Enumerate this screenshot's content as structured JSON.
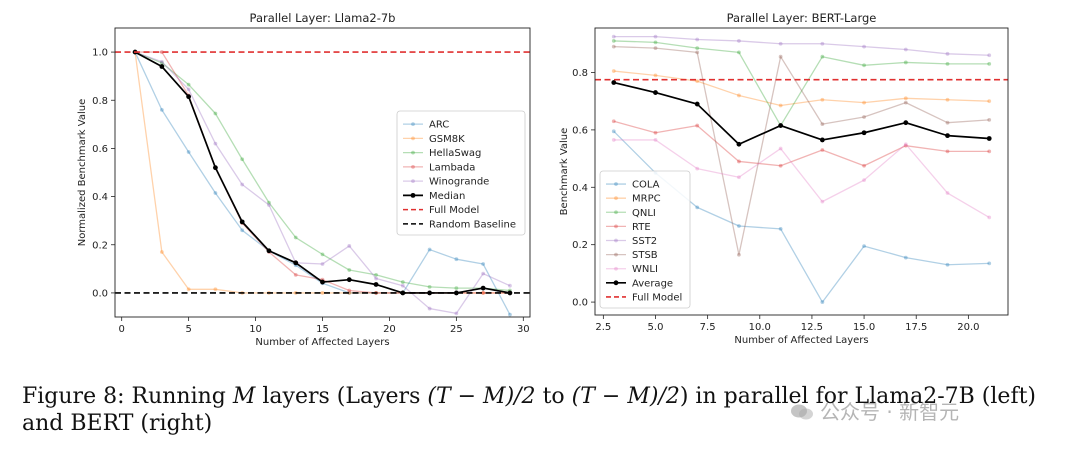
{
  "figure": {
    "caption_label": "Figure 8:",
    "caption_pre": "Running",
    "caption_m1": "M",
    "caption_mid": "layers (Layers",
    "caption_expr1": "(T − M)/2",
    "caption_to": "to",
    "caption_expr2": "(T − M)/2",
    "caption_post": ") in parallel for Llama2-7B (left) and BERT (right)",
    "watermark": "公众号 · 新智元"
  },
  "chart_data": [
    {
      "type": "line",
      "title": "Parallel Layer: Llama2-7b",
      "xlabel": "Number of Affected Layers",
      "ylabel": "Normalized Benchmark Value",
      "xlim": [
        -0.5,
        30.5
      ],
      "ylim": [
        -0.1,
        1.1
      ],
      "xticks": [
        0,
        5,
        10,
        15,
        20,
        25,
        30
      ],
      "xtick_labels": [
        "0",
        "5",
        "10",
        "15",
        "20",
        "25",
        "30"
      ],
      "yticks": [
        0.0,
        0.2,
        0.4,
        0.6,
        0.8,
        1.0
      ],
      "ytick_labels": [
        "0.0",
        "0.2",
        "0.4",
        "0.6",
        "0.8",
        "1.0"
      ],
      "legend_position": "center-right",
      "series": [
        {
          "name": "ARC",
          "color": "#1f77b4",
          "faded": true,
          "x": [
            1,
            3,
            5,
            7,
            9,
            11,
            13,
            15,
            17,
            19,
            21,
            23,
            25,
            27,
            29
          ],
          "y": [
            1.0,
            0.76,
            0.585,
            0.415,
            0.26,
            0.175,
            0.115,
            0.04,
            0.0,
            0.0,
            0.0,
            0.18,
            0.14,
            0.12,
            -0.09
          ]
        },
        {
          "name": "GSM8K",
          "color": "#ff7f0e",
          "faded": true,
          "x": [
            1,
            3,
            5,
            7,
            9,
            11,
            13,
            15,
            17,
            19,
            21,
            23,
            25,
            27,
            29
          ],
          "y": [
            1.0,
            0.17,
            0.015,
            0.015,
            0.0,
            0.0,
            0.0,
            0.0,
            0.0,
            0.0,
            0.0,
            0.0,
            0.0,
            0.0,
            0.0
          ]
        },
        {
          "name": "HellaSwag",
          "color": "#2ca02c",
          "faded": true,
          "x": [
            1,
            3,
            5,
            7,
            9,
            11,
            13,
            15,
            17,
            19,
            21,
            23,
            25,
            27,
            29
          ],
          "y": [
            1.0,
            0.955,
            0.865,
            0.745,
            0.555,
            0.375,
            0.23,
            0.16,
            0.095,
            0.075,
            0.045,
            0.025,
            0.02,
            0.02,
            0.01
          ]
        },
        {
          "name": "Lambada",
          "color": "#d62728",
          "faded": true,
          "x": [
            1,
            3,
            5,
            7,
            9,
            11,
            13,
            15,
            17,
            19,
            21,
            23,
            25,
            27,
            29
          ],
          "y": [
            1.0,
            1.0,
            0.82,
            0.52,
            0.29,
            0.17,
            0.075,
            0.055,
            0.01,
            0.0,
            0.0,
            0.0,
            0.0,
            0.0,
            0.0
          ]
        },
        {
          "name": "Winogrande",
          "color": "#9467bd",
          "faded": true,
          "x": [
            1,
            3,
            5,
            7,
            9,
            11,
            13,
            15,
            17,
            19,
            21,
            23,
            25,
            27,
            29
          ],
          "y": [
            1.0,
            0.96,
            0.845,
            0.62,
            0.45,
            0.365,
            0.125,
            0.12,
            0.195,
            0.06,
            0.03,
            -0.065,
            -0.085,
            0.08,
            0.03
          ]
        },
        {
          "name": "Median",
          "color": "#000000",
          "faded": false,
          "x": [
            1,
            3,
            5,
            7,
            9,
            11,
            13,
            15,
            17,
            19,
            21,
            23,
            25,
            27,
            29
          ],
          "y": [
            1.0,
            0.94,
            0.815,
            0.52,
            0.295,
            0.175,
            0.125,
            0.045,
            0.055,
            0.035,
            0.0,
            0.0,
            0.0,
            0.02,
            0.0
          ]
        },
        {
          "name": "Full Model",
          "color": "#e03030",
          "dashed": true,
          "hline": 1.0
        },
        {
          "name": "Random Baseline",
          "color": "#000000",
          "dashed": true,
          "hline": 0.0
        }
      ]
    },
    {
      "type": "line",
      "title": "Parallel Layer: BERT-Large",
      "xlabel": "Number of Affected Layers",
      "ylabel": "Benchmark Value",
      "xlim": [
        2.1,
        21.9
      ],
      "ylim": [
        -0.045,
        0.955
      ],
      "xticks": [
        2.5,
        5.0,
        7.5,
        10.0,
        12.5,
        15.0,
        17.5,
        20.0
      ],
      "xtick_labels": [
        "2.5",
        "5.0",
        "7.5",
        "10.0",
        "12.5",
        "15.0",
        "17.5",
        "20.0"
      ],
      "yticks": [
        0.0,
        0.2,
        0.4,
        0.6,
        0.8
      ],
      "ytick_labels": [
        "0.0",
        "0.2",
        "0.4",
        "0.6",
        "0.8"
      ],
      "legend_position": "lower-left",
      "series": [
        {
          "name": "COLA",
          "color": "#1f77b4",
          "faded": true,
          "x": [
            3,
            5,
            7,
            9,
            11,
            13,
            15,
            17,
            19,
            21
          ],
          "y": [
            0.595,
            0.45,
            0.33,
            0.265,
            0.255,
            0.0,
            0.195,
            0.155,
            0.13,
            0.135
          ]
        },
        {
          "name": "MRPC",
          "color": "#ff7f0e",
          "faded": true,
          "x": [
            3,
            5,
            7,
            9,
            11,
            13,
            15,
            17,
            19,
            21
          ],
          "y": [
            0.805,
            0.79,
            0.77,
            0.72,
            0.685,
            0.705,
            0.695,
            0.71,
            0.705,
            0.7
          ]
        },
        {
          "name": "QNLI",
          "color": "#2ca02c",
          "faded": true,
          "x": [
            3,
            5,
            7,
            9,
            11,
            13,
            15,
            17,
            19,
            21
          ],
          "y": [
            0.91,
            0.905,
            0.885,
            0.87,
            0.615,
            0.855,
            0.825,
            0.835,
            0.83,
            0.83
          ]
        },
        {
          "name": "RTE",
          "color": "#d62728",
          "faded": true,
          "x": [
            3,
            5,
            7,
            9,
            11,
            13,
            15,
            17,
            19,
            21
          ],
          "y": [
            0.63,
            0.59,
            0.615,
            0.49,
            0.475,
            0.53,
            0.475,
            0.545,
            0.525,
            0.525
          ]
        },
        {
          "name": "SST2",
          "color": "#9467bd",
          "faded": true,
          "x": [
            3,
            5,
            7,
            9,
            11,
            13,
            15,
            17,
            19,
            21
          ],
          "y": [
            0.925,
            0.925,
            0.915,
            0.91,
            0.9,
            0.9,
            0.89,
            0.88,
            0.865,
            0.86
          ]
        },
        {
          "name": "STSB",
          "color": "#8c564b",
          "faded": true,
          "x": [
            3,
            5,
            7,
            9,
            11,
            13,
            15,
            17,
            19,
            21
          ],
          "y": [
            0.89,
            0.885,
            0.87,
            0.165,
            0.855,
            0.62,
            0.645,
            0.695,
            0.625,
            0.635
          ]
        },
        {
          "name": "WNLI",
          "color": "#e377c2",
          "faded": true,
          "x": [
            3,
            5,
            7,
            9,
            11,
            13,
            15,
            17,
            19,
            21
          ],
          "y": [
            0.565,
            0.565,
            0.465,
            0.435,
            0.535,
            0.35,
            0.425,
            0.55,
            0.38,
            0.295
          ]
        },
        {
          "name": "Average",
          "color": "#000000",
          "faded": false,
          "x": [
            3,
            5,
            7,
            9,
            11,
            13,
            15,
            17,
            19,
            21
          ],
          "y": [
            0.765,
            0.73,
            0.69,
            0.55,
            0.615,
            0.565,
            0.59,
            0.625,
            0.58,
            0.57
          ]
        },
        {
          "name": "Full Model",
          "color": "#e03030",
          "dashed": true,
          "hline": 0.775
        }
      ]
    }
  ]
}
